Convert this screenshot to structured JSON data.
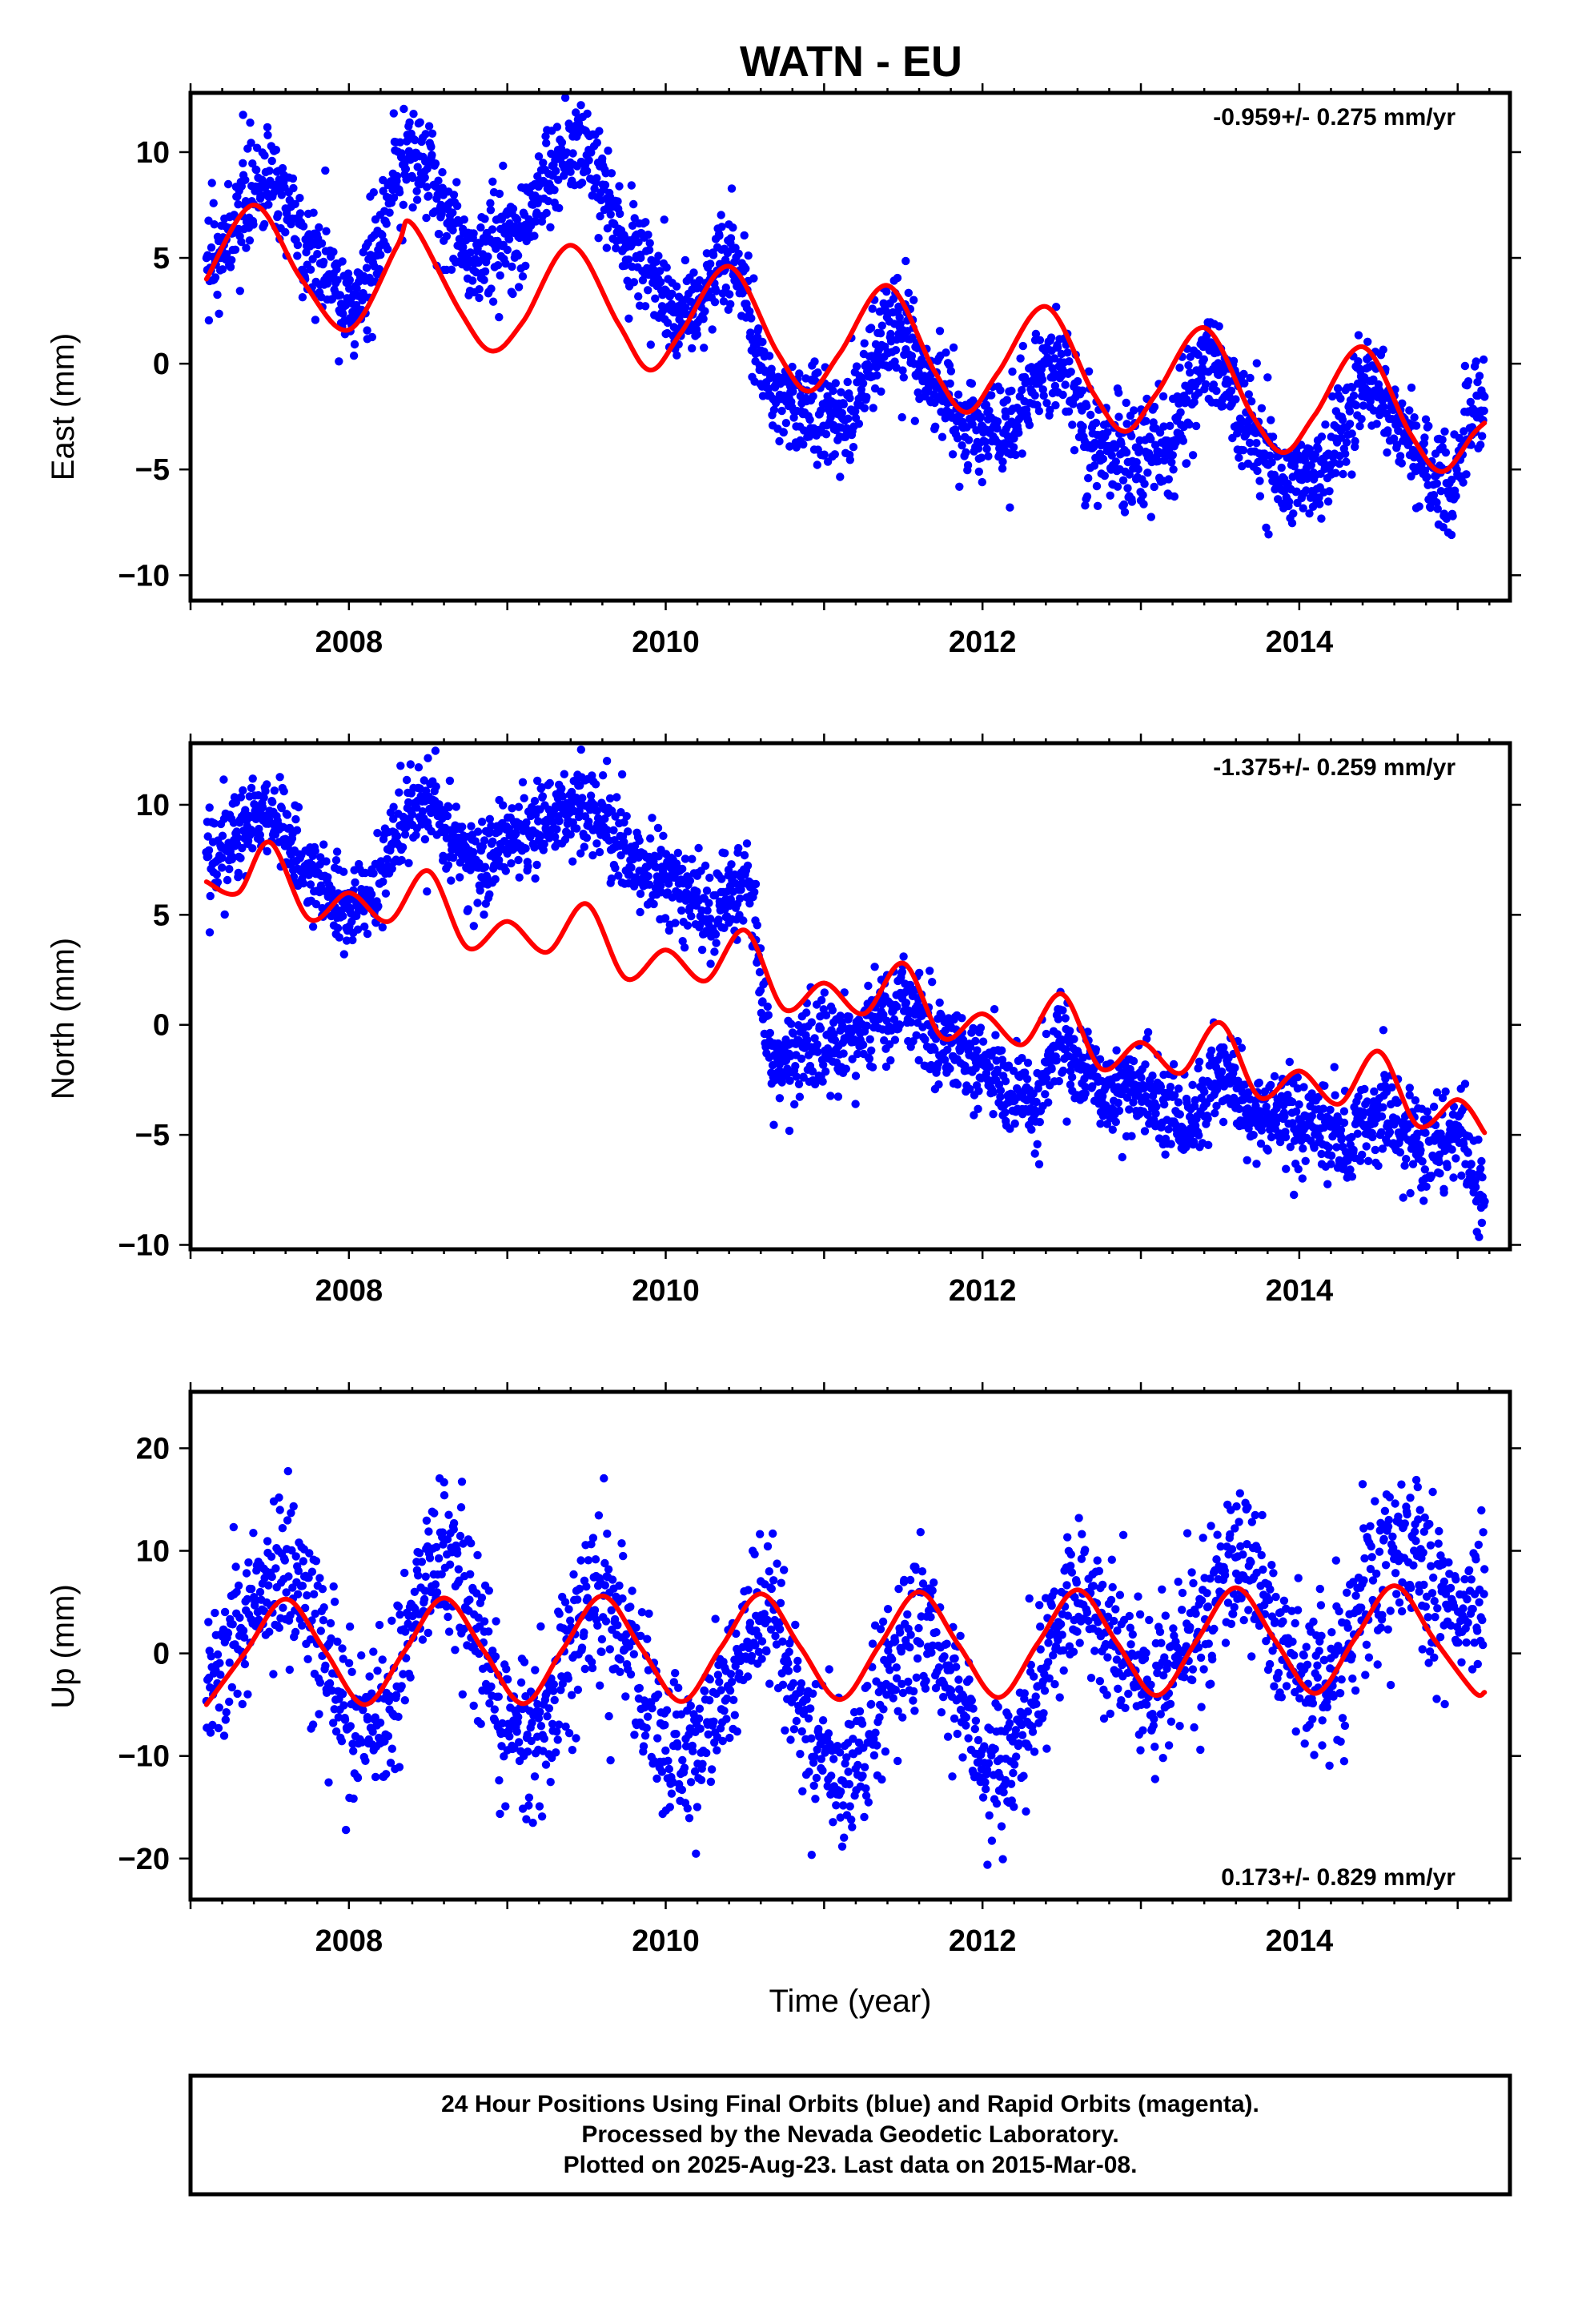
{
  "title": "WATN - EU",
  "footer": {
    "lines": [
      "24 Hour Positions Using Final Orbits (blue) and Rapid Orbits (magenta).",
      "Processed by the Nevada Geodetic Laboratory.",
      "Plotted on 2025-Aug-23. Last data on 2015-Mar-08."
    ]
  },
  "colors": {
    "data": "#0000ff",
    "model": "#ff0000",
    "axis": "#000000"
  },
  "chart_data": [
    {
      "type": "scatter",
      "ylabel": "East (mm)",
      "xlabel": "",
      "xlim": [
        2007.0,
        2015.33
      ],
      "ylim": [
        -11.2,
        12.8
      ],
      "xticks": [
        2008,
        2010,
        2012,
        2014
      ],
      "yticks": [
        -10,
        -5,
        0,
        5,
        10
      ],
      "tick_labels": [
        "2008",
        "2010",
        "2012",
        "2014"
      ],
      "ytick_labels": [
        "−10",
        "−5",
        "0",
        "5",
        "10"
      ],
      "rate_text": "-0.959+/- 0.275 mm/yr",
      "rate_position": "top-right",
      "grid": false,
      "model": {
        "name": "",
        "x": [
          2007.1,
          2007.4,
          2007.7,
          2008.0,
          2008.3,
          2008.4,
          2008.7,
          2008.9,
          2009.1,
          2009.4,
          2009.7,
          2009.9,
          2010.1,
          2010.4,
          2010.7,
          2010.9,
          2011.1,
          2011.4,
          2011.7,
          2011.9,
          2012.1,
          2012.4,
          2012.7,
          2012.9,
          2013.1,
          2013.4,
          2013.7,
          2013.9,
          2014.1,
          2014.4,
          2014.7,
          2014.9,
          2015.1,
          2015.17
        ],
        "y": [
          4.0,
          7.5,
          4.0,
          1.6,
          5.5,
          6.6,
          2.5,
          0.6,
          2.0,
          5.6,
          1.9,
          -0.3,
          1.5,
          4.6,
          0.6,
          -1.3,
          0.5,
          3.7,
          -0.4,
          -2.3,
          -0.4,
          2.7,
          -1.4,
          -3.2,
          -1.4,
          1.7,
          -2.4,
          -4.2,
          -2.4,
          0.8,
          -3.3,
          -5.1,
          -3.3,
          -2.8
        ]
      },
      "series": {
        "name": "",
        "anchors_x": [
          2007.1,
          2007.5,
          2007.8,
          2008.0,
          2008.4,
          2008.8,
          2009.0,
          2009.45,
          2009.8,
          2010.1,
          2010.4,
          2010.7,
          2010.9,
          2011.1,
          2011.45,
          2011.7,
          2011.9,
          2012.1,
          2012.45,
          2012.7,
          2012.9,
          2013.1,
          2013.45,
          2013.7,
          2013.9,
          2014.1,
          2014.45,
          2014.7,
          2014.9,
          2015.17
        ],
        "anchors_y": [
          5.0,
          8.5,
          5.0,
          2.5,
          9.8,
          5.0,
          6.0,
          10.5,
          5.5,
          2.0,
          5.0,
          -1.5,
          -2.5,
          -2.5,
          1.5,
          -1.0,
          -3.0,
          -3.0,
          0.0,
          -3.5,
          -5.0,
          -4.0,
          0.0,
          -3.0,
          -5.5,
          -5.0,
          -1.0,
          -3.5,
          -6.0,
          -2.0
        ],
        "scatter_spread": 1.5,
        "x_start": 2007.1,
        "x_end": 2015.17
      }
    },
    {
      "type": "scatter",
      "ylabel": "North (mm)",
      "xlabel": "",
      "xlim": [
        2007.0,
        2015.33
      ],
      "ylim": [
        -10.2,
        12.8
      ],
      "xticks": [
        2008,
        2010,
        2012,
        2014
      ],
      "yticks": [
        -10,
        -5,
        0,
        5,
        10
      ],
      "tick_labels": [
        "2008",
        "2010",
        "2012",
        "2014"
      ],
      "ytick_labels": [
        "−10",
        "−5",
        "0",
        "5",
        "10"
      ],
      "rate_text": "-1.375+/- 0.259 mm/yr",
      "rate_position": "top-right",
      "grid": false,
      "model": {
        "name": "",
        "x": [
          2007.1,
          2007.3,
          2007.5,
          2007.75,
          2008.0,
          2008.25,
          2008.5,
          2008.75,
          2009.0,
          2009.25,
          2009.5,
          2009.75,
          2010.0,
          2010.25,
          2010.5,
          2010.75,
          2011.0,
          2011.25,
          2011.5,
          2011.75,
          2012.0,
          2012.25,
          2012.5,
          2012.75,
          2013.0,
          2013.25,
          2013.5,
          2013.75,
          2014.0,
          2014.25,
          2014.5,
          2014.75,
          2015.0,
          2015.17
        ],
        "y": [
          6.5,
          6.0,
          8.3,
          4.8,
          6.0,
          4.7,
          7.0,
          3.5,
          4.7,
          3.3,
          5.5,
          2.1,
          3.4,
          2.0,
          4.3,
          0.7,
          1.9,
          0.5,
          2.8,
          -0.6,
          0.5,
          -0.9,
          1.4,
          -2.0,
          -0.8,
          -2.2,
          0.1,
          -3.3,
          -2.1,
          -3.6,
          -1.2,
          -4.6,
          -3.4,
          -4.9
        ]
      },
      "series": {
        "name": "",
        "anchors_x": [
          2007.1,
          2007.5,
          2007.8,
          2008.0,
          2008.5,
          2008.8,
          2009.0,
          2009.5,
          2009.8,
          2010.0,
          2010.3,
          2010.5,
          2010.7,
          2011.0,
          2011.5,
          2011.8,
          2012.0,
          2012.3,
          2012.5,
          2012.8,
          2013.0,
          2013.3,
          2013.5,
          2013.8,
          2014.0,
          2014.3,
          2014.5,
          2014.8,
          2015.0,
          2015.17
        ],
        "anchors_y": [
          8.0,
          9.5,
          6.5,
          5.5,
          10.0,
          7.5,
          8.5,
          10.0,
          7.5,
          6.5,
          5.0,
          6.5,
          -2.0,
          -1.0,
          1.0,
          -1.0,
          -2.0,
          -3.5,
          -1.0,
          -3.0,
          -3.0,
          -4.5,
          -2.5,
          -4.5,
          -4.5,
          -5.5,
          -4.0,
          -5.5,
          -5.0,
          -8.0
        ],
        "scatter_spread": 1.3,
        "x_start": 2007.1,
        "x_end": 2015.17
      }
    },
    {
      "type": "scatter",
      "ylabel": "Up (mm)",
      "xlabel": "Time (year)",
      "xlim": [
        2007.0,
        2015.33
      ],
      "ylim": [
        -24.0,
        25.5
      ],
      "xticks": [
        2008,
        2010,
        2012,
        2014
      ],
      "yticks": [
        -20,
        -10,
        0,
        10,
        20
      ],
      "tick_labels": [
        "2008",
        "2010",
        "2012",
        "2014"
      ],
      "ytick_labels": [
        "−20",
        "−10",
        "0",
        "10",
        "20"
      ],
      "rate_text": "0.173+/- 0.829 mm/yr",
      "rate_position": "bottom-right",
      "grid": false,
      "model": {
        "name": "",
        "x": [
          2007.1,
          2007.35,
          2007.6,
          2007.85,
          2008.1,
          2008.35,
          2008.6,
          2008.85,
          2009.1,
          2009.35,
          2009.6,
          2009.85,
          2010.1,
          2010.35,
          2010.6,
          2010.85,
          2011.1,
          2011.35,
          2011.6,
          2011.85,
          2012.1,
          2012.35,
          2012.6,
          2012.85,
          2013.1,
          2013.35,
          2013.6,
          2013.85,
          2014.1,
          2014.35,
          2014.6,
          2014.85,
          2015.1,
          2015.17
        ],
        "y": [
          -5.0,
          0.2,
          5.3,
          0.2,
          -5.0,
          0.2,
          5.4,
          0.3,
          -4.9,
          0.4,
          5.6,
          0.4,
          -4.7,
          0.6,
          5.8,
          0.6,
          -4.5,
          0.8,
          6.0,
          0.8,
          -4.3,
          1.0,
          6.2,
          1.0,
          -4.1,
          1.2,
          6.4,
          1.2,
          -3.9,
          1.4,
          6.6,
          1.4,
          -3.7,
          -3.8
        ]
      },
      "series": {
        "name": "",
        "anchors_x": [
          2007.1,
          2007.6,
          2008.1,
          2008.6,
          2009.1,
          2009.6,
          2010.1,
          2010.6,
          2011.1,
          2011.6,
          2012.1,
          2012.6,
          2013.1,
          2013.6,
          2014.1,
          2014.6,
          2015.1,
          2015.17
        ],
        "anchors_y": [
          -2.0,
          8.0,
          -8.0,
          9.0,
          -9.0,
          5.0,
          -10.0,
          3.0,
          -12.0,
          3.0,
          -12.0,
          5.0,
          -3.0,
          8.0,
          -3.0,
          10.0,
          4.0,
          6.0
        ],
        "scatter_spread": 5.0,
        "x_start": 2007.1,
        "x_end": 2015.17
      }
    }
  ]
}
